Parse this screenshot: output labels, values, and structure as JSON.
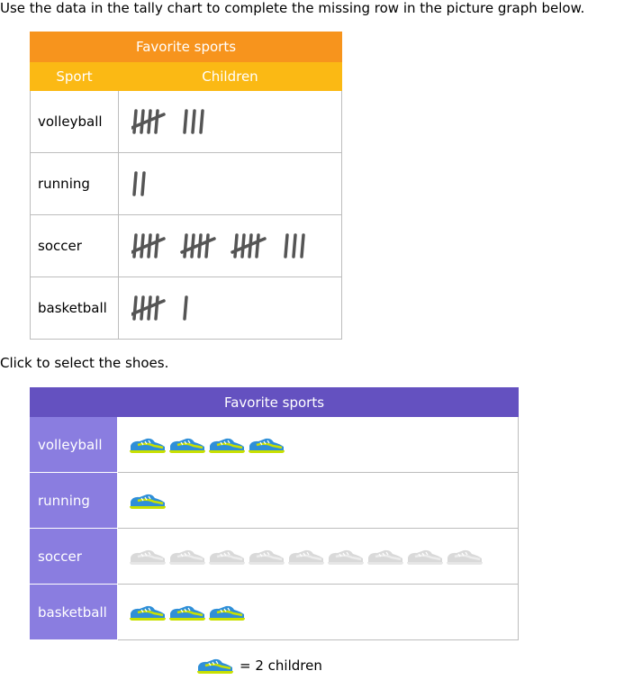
{
  "instructions": {
    "line1": "Use the data in the tally chart to complete the missing row in the picture graph below.",
    "line2": "Click to select the shoes."
  },
  "tally_chart": {
    "title": "Favorite sports",
    "col_sport": "Sport",
    "col_children": "Children",
    "rows": [
      {
        "sport": "volleyball",
        "count": 8
      },
      {
        "sport": "running",
        "count": 2
      },
      {
        "sport": "soccer",
        "count": 18
      },
      {
        "sport": "basketball",
        "count": 6
      }
    ]
  },
  "picture_graph": {
    "title": "Favorite sports",
    "rows": [
      {
        "sport": "volleyball",
        "shoes": 4,
        "selectable": false
      },
      {
        "sport": "running",
        "shoes": 1,
        "selectable": false
      },
      {
        "sport": "soccer",
        "shoes": 9,
        "selectable": true,
        "selected": 0
      },
      {
        "sport": "basketball",
        "shoes": 3,
        "selectable": false
      }
    ],
    "key_label": "= 2 children"
  },
  "colors": {
    "tally_title_bg": "#f7941d",
    "tally_header_bg": "#fbb914",
    "tally_mark": "#555555",
    "graph_title_bg": "#6451c0",
    "graph_label_bg": "#8a7de0",
    "shoe_body": "#2f8fd8",
    "shoe_accent": "#c8e000",
    "shoe_placeholder": "#d9d9d9"
  },
  "icons": {
    "shoe": "sneaker-icon"
  }
}
